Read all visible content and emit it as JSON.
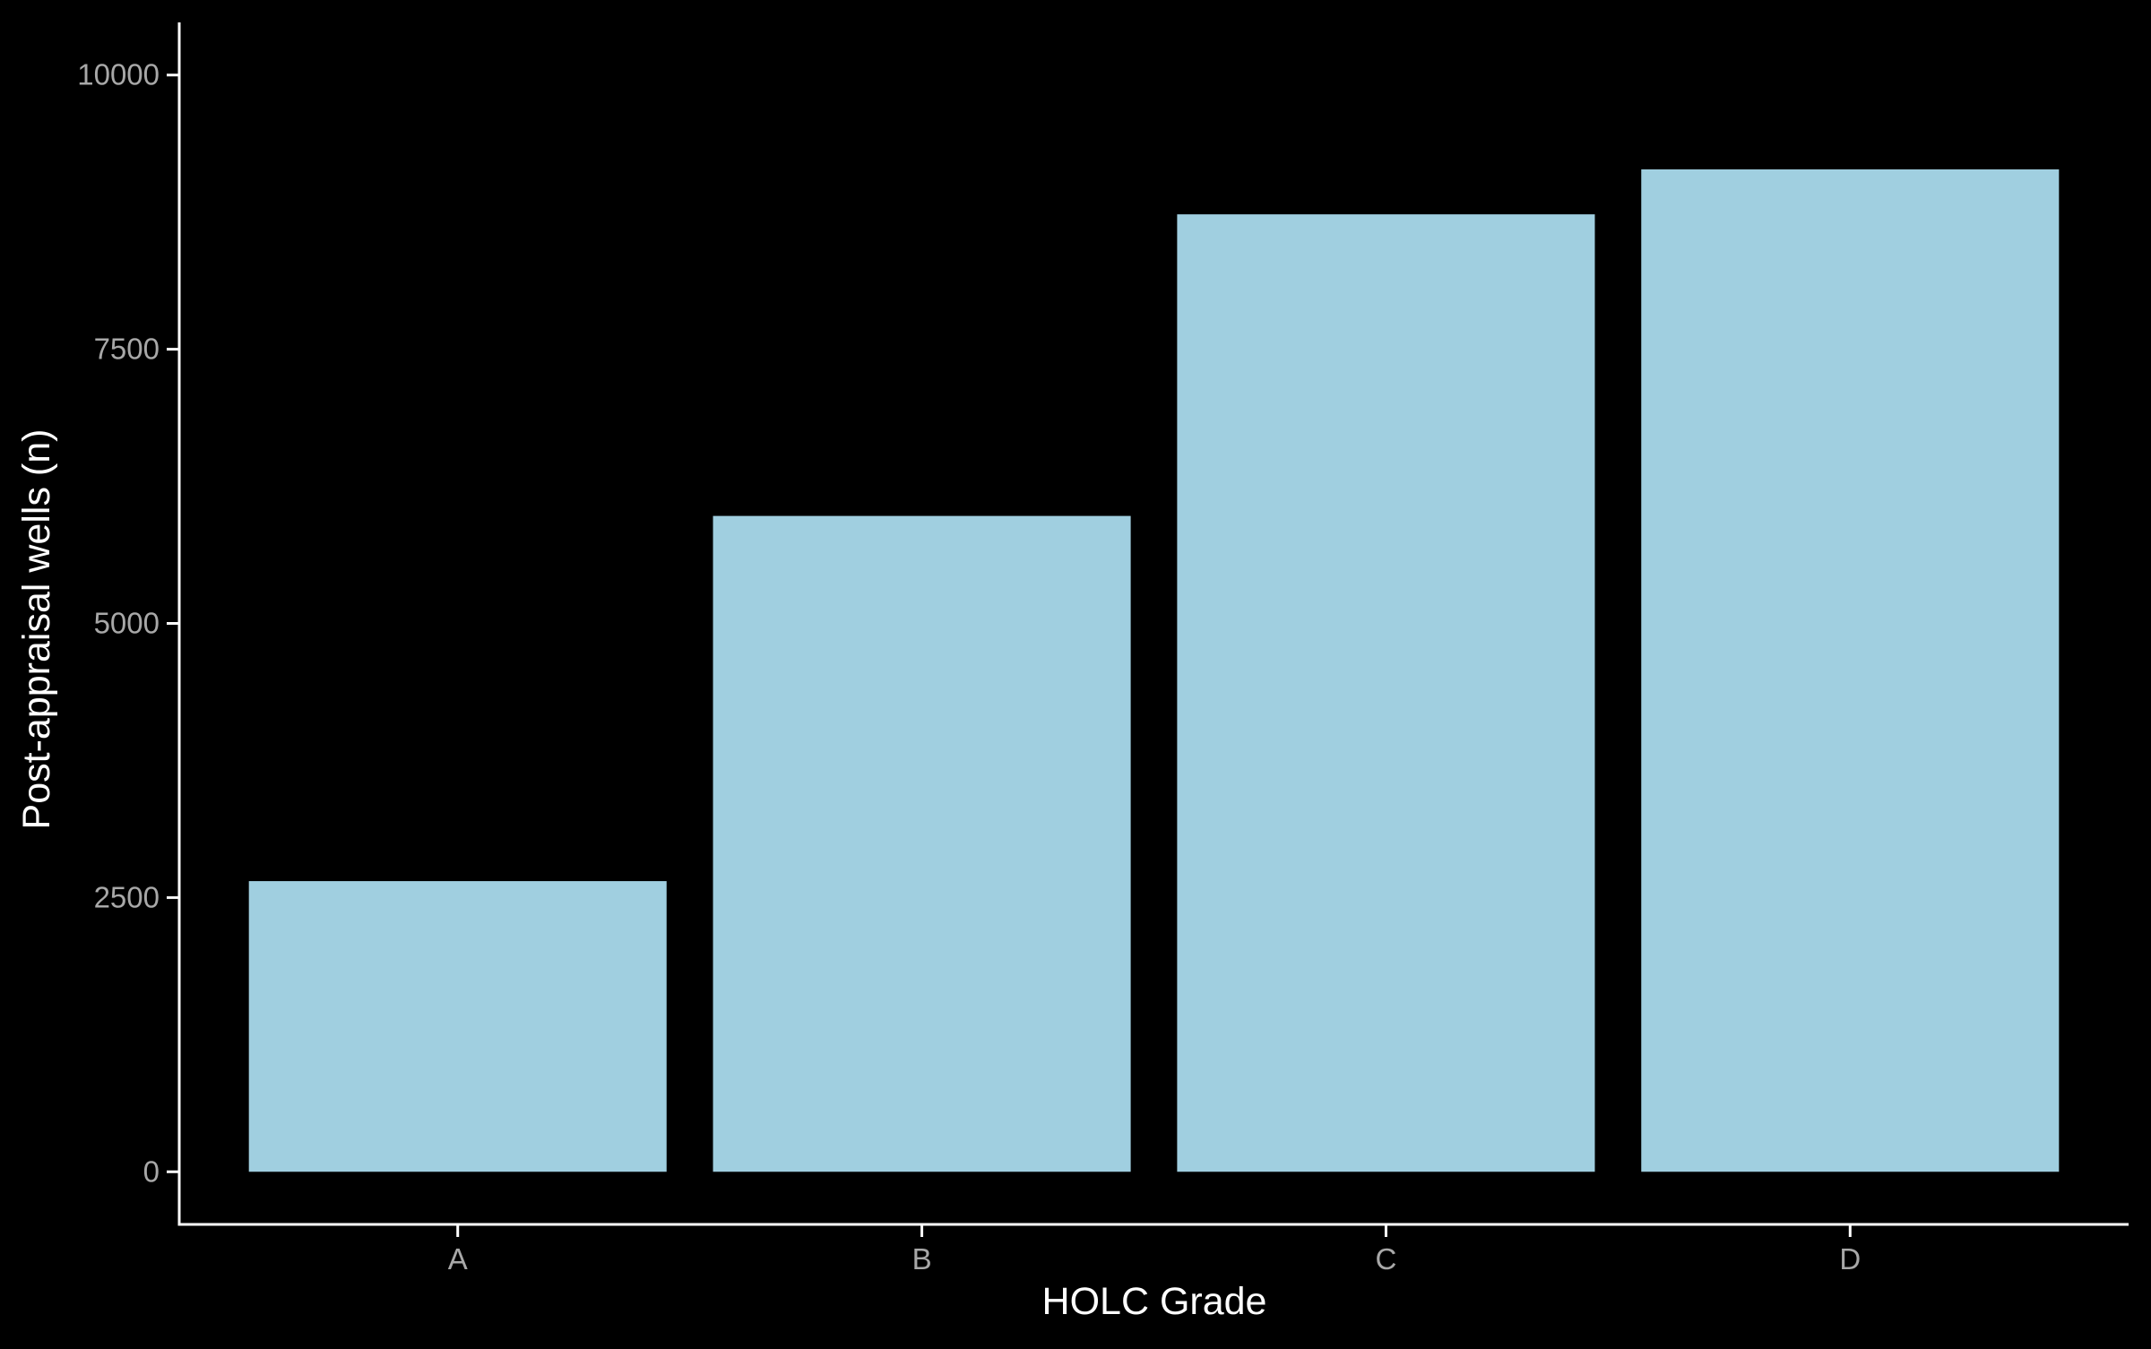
{
  "chart_data": {
    "type": "bar",
    "title": "",
    "xlabel": "HOLC Grade",
    "ylabel": "Post-appraisal wells (n)",
    "categories": [
      "A",
      "B",
      "C",
      "D"
    ],
    "values": [
      2650,
      5980,
      8730,
      9140
    ],
    "ylim": [
      -480,
      10480
    ],
    "yticks": [
      0,
      2500,
      5000,
      7500,
      10000
    ],
    "ytick_labels": [
      "0",
      "2500",
      "5000",
      "7500",
      "10000"
    ],
    "grid": false,
    "legend": "none",
    "colors": {
      "background": "#000000",
      "bar": "#a0cfe0",
      "axis_line": "#ffffff",
      "tick_label": "#a8a8a8",
      "axis_title": "#ffffff"
    }
  }
}
